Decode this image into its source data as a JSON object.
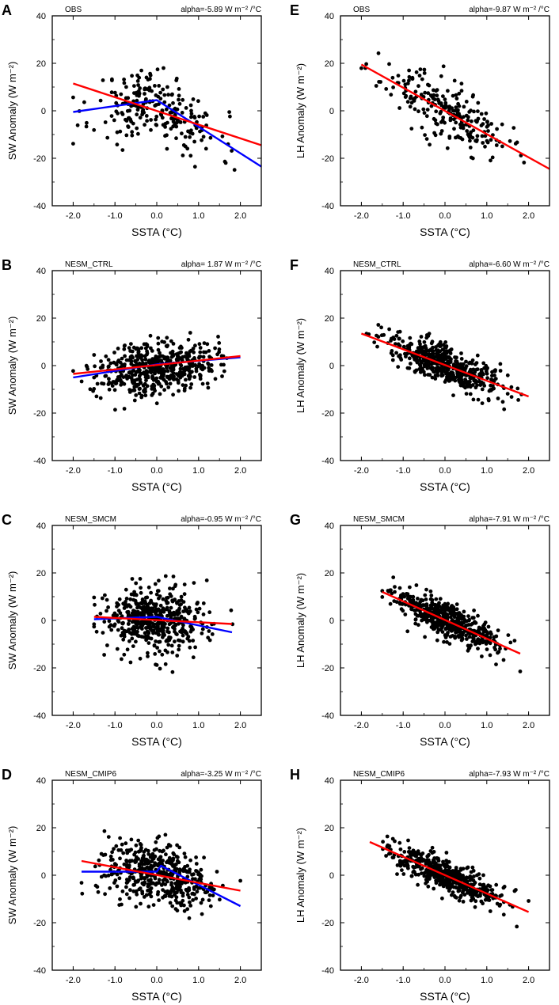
{
  "figure": {
    "common": {
      "xlabel": "SSTA (°C)",
      "x_ticks": [
        -2.0,
        -1.0,
        0.0,
        1.0,
        2.0
      ],
      "x_tick_labels": [
        "-2.0",
        "-1.0",
        "0.0",
        "1.0",
        "2.0"
      ],
      "y_ticks": [
        -40,
        -20,
        0,
        20,
        40
      ],
      "xlim": [
        -2.5,
        2.5
      ],
      "ylim": [
        -40,
        40
      ],
      "colors": {
        "points": "#000000",
        "fit_line": "#ff0000",
        "piecewise_line": "#0000ff",
        "frame": "#000000"
      }
    }
  },
  "chart_data": [
    {
      "panel": "A",
      "name": "OBS",
      "alpha": "alpha=-5.89 W m⁻² /°C",
      "ylabel": "SW Anomaly (W m⁻²)",
      "type": "scatter",
      "n_points": 230,
      "seed": 11,
      "x_range": [
        -2.0,
        2.1
      ],
      "x_sd": 0.75,
      "noise_sd": 7.5,
      "y_clip": [
        -38,
        18
      ],
      "trend": [
        [
          -2.0,
          -1.0
        ],
        [
          0.0,
          4.0
        ],
        [
          2.5,
          -24.0
        ]
      ],
      "red_line": [
        [
          -2.0,
          11.5
        ],
        [
          2.5,
          -14.5
        ]
      ],
      "blue_line": [
        [
          -2.0,
          -0.5
        ],
        [
          0.0,
          4.5
        ],
        [
          2.5,
          -23.5
        ]
      ]
    },
    {
      "panel": "E",
      "name": "OBS",
      "alpha": "alpha=-9.87 W m⁻² /°C",
      "ylabel": "LH Anomaly (W m⁻²)",
      "type": "scatter",
      "n_points": 230,
      "seed": 23,
      "x_range": [
        -2.0,
        2.3
      ],
      "x_sd": 0.75,
      "noise_sd": 6.0,
      "y_clip": [
        -28,
        26
      ],
      "trend": [
        [
          -2.0,
          19.5
        ],
        [
          2.5,
          -24.5
        ]
      ],
      "red_line": [
        [
          -2.0,
          19.5
        ],
        [
          2.5,
          -24.5
        ]
      ],
      "blue_line": null
    },
    {
      "panel": "B",
      "name": "NESM_CTRL",
      "alpha": "alpha= 1.87 W m⁻² /°C",
      "ylabel": "SW Anomaly (W m⁻²)",
      "type": "scatter",
      "n_points": 500,
      "seed": 37,
      "x_range": [
        -2.0,
        2.0
      ],
      "x_sd": 0.7,
      "noise_sd": 5.5,
      "y_clip": [
        -20,
        17
      ],
      "trend": [
        [
          -2.0,
          -4.5
        ],
        [
          2.0,
          3.5
        ]
      ],
      "red_line": [
        [
          -2.0,
          -3.5
        ],
        [
          2.0,
          4.0
        ]
      ],
      "blue_line": [
        [
          -2.0,
          -5.0
        ],
        [
          0.0,
          0.5
        ],
        [
          2.0,
          3.5
        ]
      ]
    },
    {
      "panel": "F",
      "name": "NESM_CTRL",
      "alpha": "alpha=-6.60 W m⁻² /°C",
      "ylabel": "LH Anomaly (W m⁻²)",
      "type": "scatter",
      "n_points": 500,
      "seed": 41,
      "x_range": [
        -2.0,
        2.0
      ],
      "x_sd": 0.7,
      "noise_sd": 4.0,
      "y_clip": [
        -27,
        19
      ],
      "trend": [
        [
          -2.0,
          13.5
        ],
        [
          2.0,
          -13.0
        ]
      ],
      "red_line": [
        [
          -2.0,
          13.5
        ],
        [
          2.0,
          -13.0
        ]
      ],
      "blue_line": null
    },
    {
      "panel": "C",
      "name": "NESM_SMCM",
      "alpha": "alpha=-0.95 W m⁻² /°C",
      "ylabel": "SW Anomaly (W m⁻²)",
      "type": "scatter",
      "n_points": 500,
      "seed": 53,
      "x_range": [
        -1.5,
        2.0
      ],
      "x_sd": 0.65,
      "noise_sd": 7.0,
      "y_clip": [
        -23,
        26
      ],
      "trend": [
        [
          -1.5,
          1.0
        ],
        [
          1.8,
          -2.0
        ]
      ],
      "red_line": [
        [
          -1.5,
          1.5
        ],
        [
          1.8,
          -1.5
        ]
      ],
      "blue_line": [
        [
          -1.5,
          0.5
        ],
        [
          0.0,
          1.5
        ],
        [
          1.8,
          -5.0
        ]
      ]
    },
    {
      "panel": "G",
      "name": "NESM_SMCM",
      "alpha": "alpha=-7.91 W m⁻² /°C",
      "ylabel": "LH Anomaly (W m⁻²)",
      "type": "scatter",
      "n_points": 500,
      "seed": 67,
      "x_range": [
        -1.5,
        1.8
      ],
      "x_sd": 0.6,
      "noise_sd": 3.5,
      "y_clip": [
        -22,
        19
      ],
      "trend": [
        [
          -1.5,
          12.0
        ],
        [
          1.8,
          -14.0
        ]
      ],
      "red_line": [
        [
          -1.5,
          12.0
        ],
        [
          1.8,
          -14.0
        ]
      ],
      "blue_line": null
    },
    {
      "panel": "D",
      "name": "NESM_CMIP6",
      "alpha": "alpha=-3.25 W m⁻² /°C",
      "ylabel": "SW Anomaly (W m⁻²)",
      "type": "scatter",
      "n_points": 500,
      "seed": 79,
      "x_range": [
        -1.8,
        2.0
      ],
      "x_sd": 0.7,
      "noise_sd": 6.0,
      "y_clip": [
        -36,
        20
      ],
      "trend": [
        [
          -1.8,
          3.0
        ],
        [
          0.0,
          2.0
        ],
        [
          2.0,
          -9.0
        ]
      ],
      "red_line": [
        [
          -1.8,
          6.0
        ],
        [
          2.0,
          -6.5
        ]
      ],
      "blue_line": [
        [
          -1.8,
          1.5
        ],
        [
          0.0,
          1.5
        ],
        [
          0.1,
          4.0
        ],
        [
          2.0,
          -13.0
        ]
      ]
    },
    {
      "panel": "H",
      "name": "NESM_CMIP6",
      "alpha": "alpha=-7.93 W m⁻² /°C",
      "ylabel": "LH Anomaly (W m⁻²)",
      "type": "scatter",
      "n_points": 500,
      "seed": 97,
      "x_range": [
        -1.8,
        2.0
      ],
      "x_sd": 0.7,
      "noise_sd": 3.5,
      "y_clip": [
        -23,
        18
      ],
      "trend": [
        [
          -1.8,
          14.0
        ],
        [
          2.0,
          -15.5
        ]
      ],
      "red_line": [
        [
          -1.8,
          14.0
        ],
        [
          2.0,
          -15.5
        ]
      ],
      "blue_line": null
    }
  ]
}
